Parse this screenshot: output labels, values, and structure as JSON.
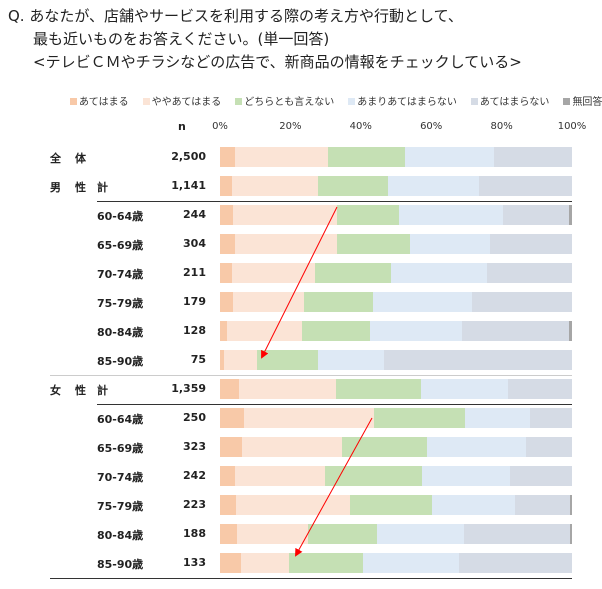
{
  "question": {
    "line1": "Q. あなたが、店舗やサービスを利用する際の考え方や行動として、",
    "line2": "最も近いものをお答えください。(単一回答)",
    "line3": "<テレビＣＭやチラシなどの広告で、新商品の情報をチェックしている>"
  },
  "chart_data": {
    "type": "bar",
    "orientation": "horizontal",
    "stacked": true,
    "xlim": [
      0,
      100
    ],
    "x_ticks": [
      "0%",
      "20%",
      "40%",
      "60%",
      "80%",
      "100%"
    ],
    "n_header": "n",
    "legend_position": "top",
    "series": [
      {
        "name": "あてはまる",
        "color": "#f8c9a8"
      },
      {
        "name": "ややあてはまる",
        "color": "#fbe4d6"
      },
      {
        "name": "どちらとも言えない",
        "color": "#c5e0b4"
      },
      {
        "name": "あまりあてはまらない",
        "color": "#dee9f5"
      },
      {
        "name": "あてはまらない",
        "color": "#d5dbe5"
      },
      {
        "name": "無回答",
        "color": "#a6a6a6"
      }
    ],
    "rows": [
      {
        "group": "全体",
        "sub": "",
        "n": "2,500",
        "values": [
          4.3,
          26.4,
          21.9,
          25.3,
          22.1,
          0
        ]
      },
      {
        "group": "男性",
        "sub": "計",
        "n": "1,141",
        "values": [
          3.4,
          24.4,
          19.9,
          25.9,
          26.4,
          0
        ]
      },
      {
        "group": "",
        "sub": "60-64歳",
        "n": "244",
        "values": [
          3.7,
          29.5,
          17.6,
          29.5,
          18.8,
          0.9
        ]
      },
      {
        "group": "",
        "sub": "65-69歳",
        "n": "304",
        "values": [
          4.3,
          29.0,
          20.7,
          22.7,
          23.3,
          0
        ]
      },
      {
        "group": "",
        "sub": "70-74歳",
        "n": "211",
        "values": [
          3.4,
          23.6,
          21.6,
          27.3,
          24.1,
          0
        ]
      },
      {
        "group": "",
        "sub": "75-79歳",
        "n": "179",
        "values": [
          3.7,
          20.2,
          19.6,
          28.1,
          28.4,
          0
        ]
      },
      {
        "group": "",
        "sub": "80-84歳",
        "n": "128",
        "values": [
          2.0,
          21.3,
          19.3,
          26.1,
          30.4,
          0.9
        ]
      },
      {
        "group": "",
        "sub": "85-90歳",
        "n": "75",
        "values": [
          1.1,
          9.4,
          17.3,
          18.8,
          53.4,
          0
        ]
      },
      {
        "group": "女性",
        "sub": "計",
        "n": "1,359",
        "values": [
          5.4,
          27.6,
          24.0,
          24.7,
          18.3,
          0
        ]
      },
      {
        "group": "",
        "sub": "60-64歳",
        "n": "250",
        "values": [
          6.8,
          36.9,
          25.8,
          18.6,
          11.9,
          0
        ]
      },
      {
        "group": "",
        "sub": "65-69歳",
        "n": "323",
        "values": [
          6.2,
          28.5,
          24.2,
          28.1,
          13.0,
          0
        ]
      },
      {
        "group": "",
        "sub": "70-74歳",
        "n": "242",
        "values": [
          4.3,
          25.5,
          27.5,
          25.0,
          17.7,
          0
        ]
      },
      {
        "group": "",
        "sub": "75-79歳",
        "n": "223",
        "values": [
          4.5,
          32.3,
          23.3,
          23.8,
          15.6,
          0.5
        ]
      },
      {
        "group": "",
        "sub": "80-84歳",
        "n": "188",
        "values": [
          4.8,
          20.3,
          19.5,
          24.6,
          30.3,
          0.5
        ]
      },
      {
        "group": "",
        "sub": "85-90歳",
        "n": "133",
        "values": [
          6.0,
          13.6,
          21.0,
          27.2,
          32.2,
          0
        ]
      }
    ],
    "arrow_color": "#ff0000"
  }
}
